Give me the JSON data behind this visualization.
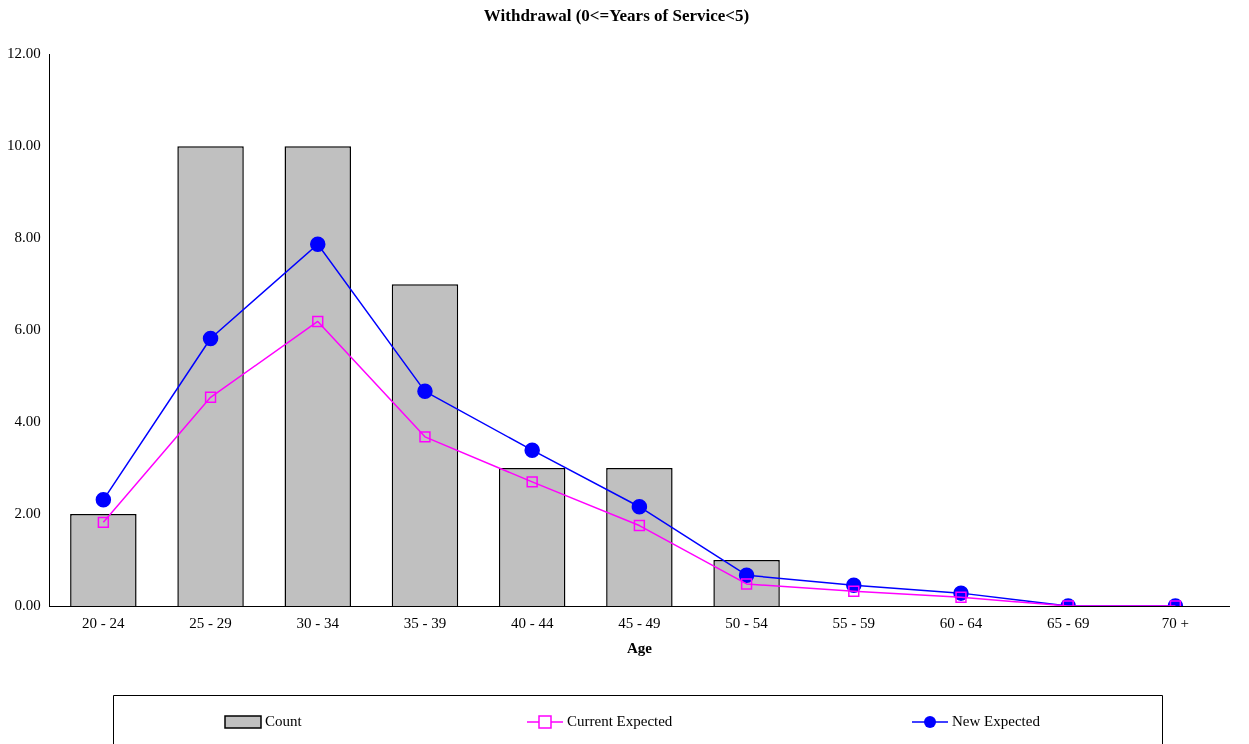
{
  "chart_data": {
    "type": "bar",
    "title": "Withdrawal (0<=Years of Service<5)",
    "xlabel": "Age",
    "categories": [
      "20 - 24",
      "25 - 29",
      "30 - 34",
      "35 - 39",
      "40 - 44",
      "45 - 49",
      "50 - 54",
      "55 - 59",
      "60 - 64",
      "65 - 69",
      "70 +"
    ],
    "series": [
      {
        "name": "Count",
        "color": "#c0c0c0",
        "values": [
          2,
          10,
          10,
          7,
          3,
          3,
          1,
          0,
          0,
          0,
          0
        ]
      },
      {
        "name": "Current Expected",
        "type": "line",
        "marker": "square",
        "color": "#ff00ff",
        "values": [
          1.82,
          4.54,
          6.19,
          3.68,
          2.7,
          1.75,
          0.48,
          0.32,
          0.19,
          0,
          0
        ]
      },
      {
        "name": "New Expected",
        "type": "line",
        "marker": "circle",
        "color": "#0000ff",
        "values": [
          2.31,
          5.82,
          7.87,
          4.67,
          3.39,
          2.16,
          0.67,
          0.45,
          0.28,
          0,
          0
        ]
      }
    ],
    "ylim": [
      0,
      12
    ],
    "yticks": [
      {
        "value": 0,
        "label": "0.00"
      },
      {
        "value": 2,
        "label": "2.00"
      },
      {
        "value": 4,
        "label": "4.00"
      },
      {
        "value": 6,
        "label": "6.00"
      },
      {
        "value": 8,
        "label": "8.00"
      },
      {
        "value": 10,
        "label": "10.00"
      },
      {
        "value": 12,
        "label": "12.00"
      }
    ],
    "grid": false,
    "legend": "bottom"
  }
}
